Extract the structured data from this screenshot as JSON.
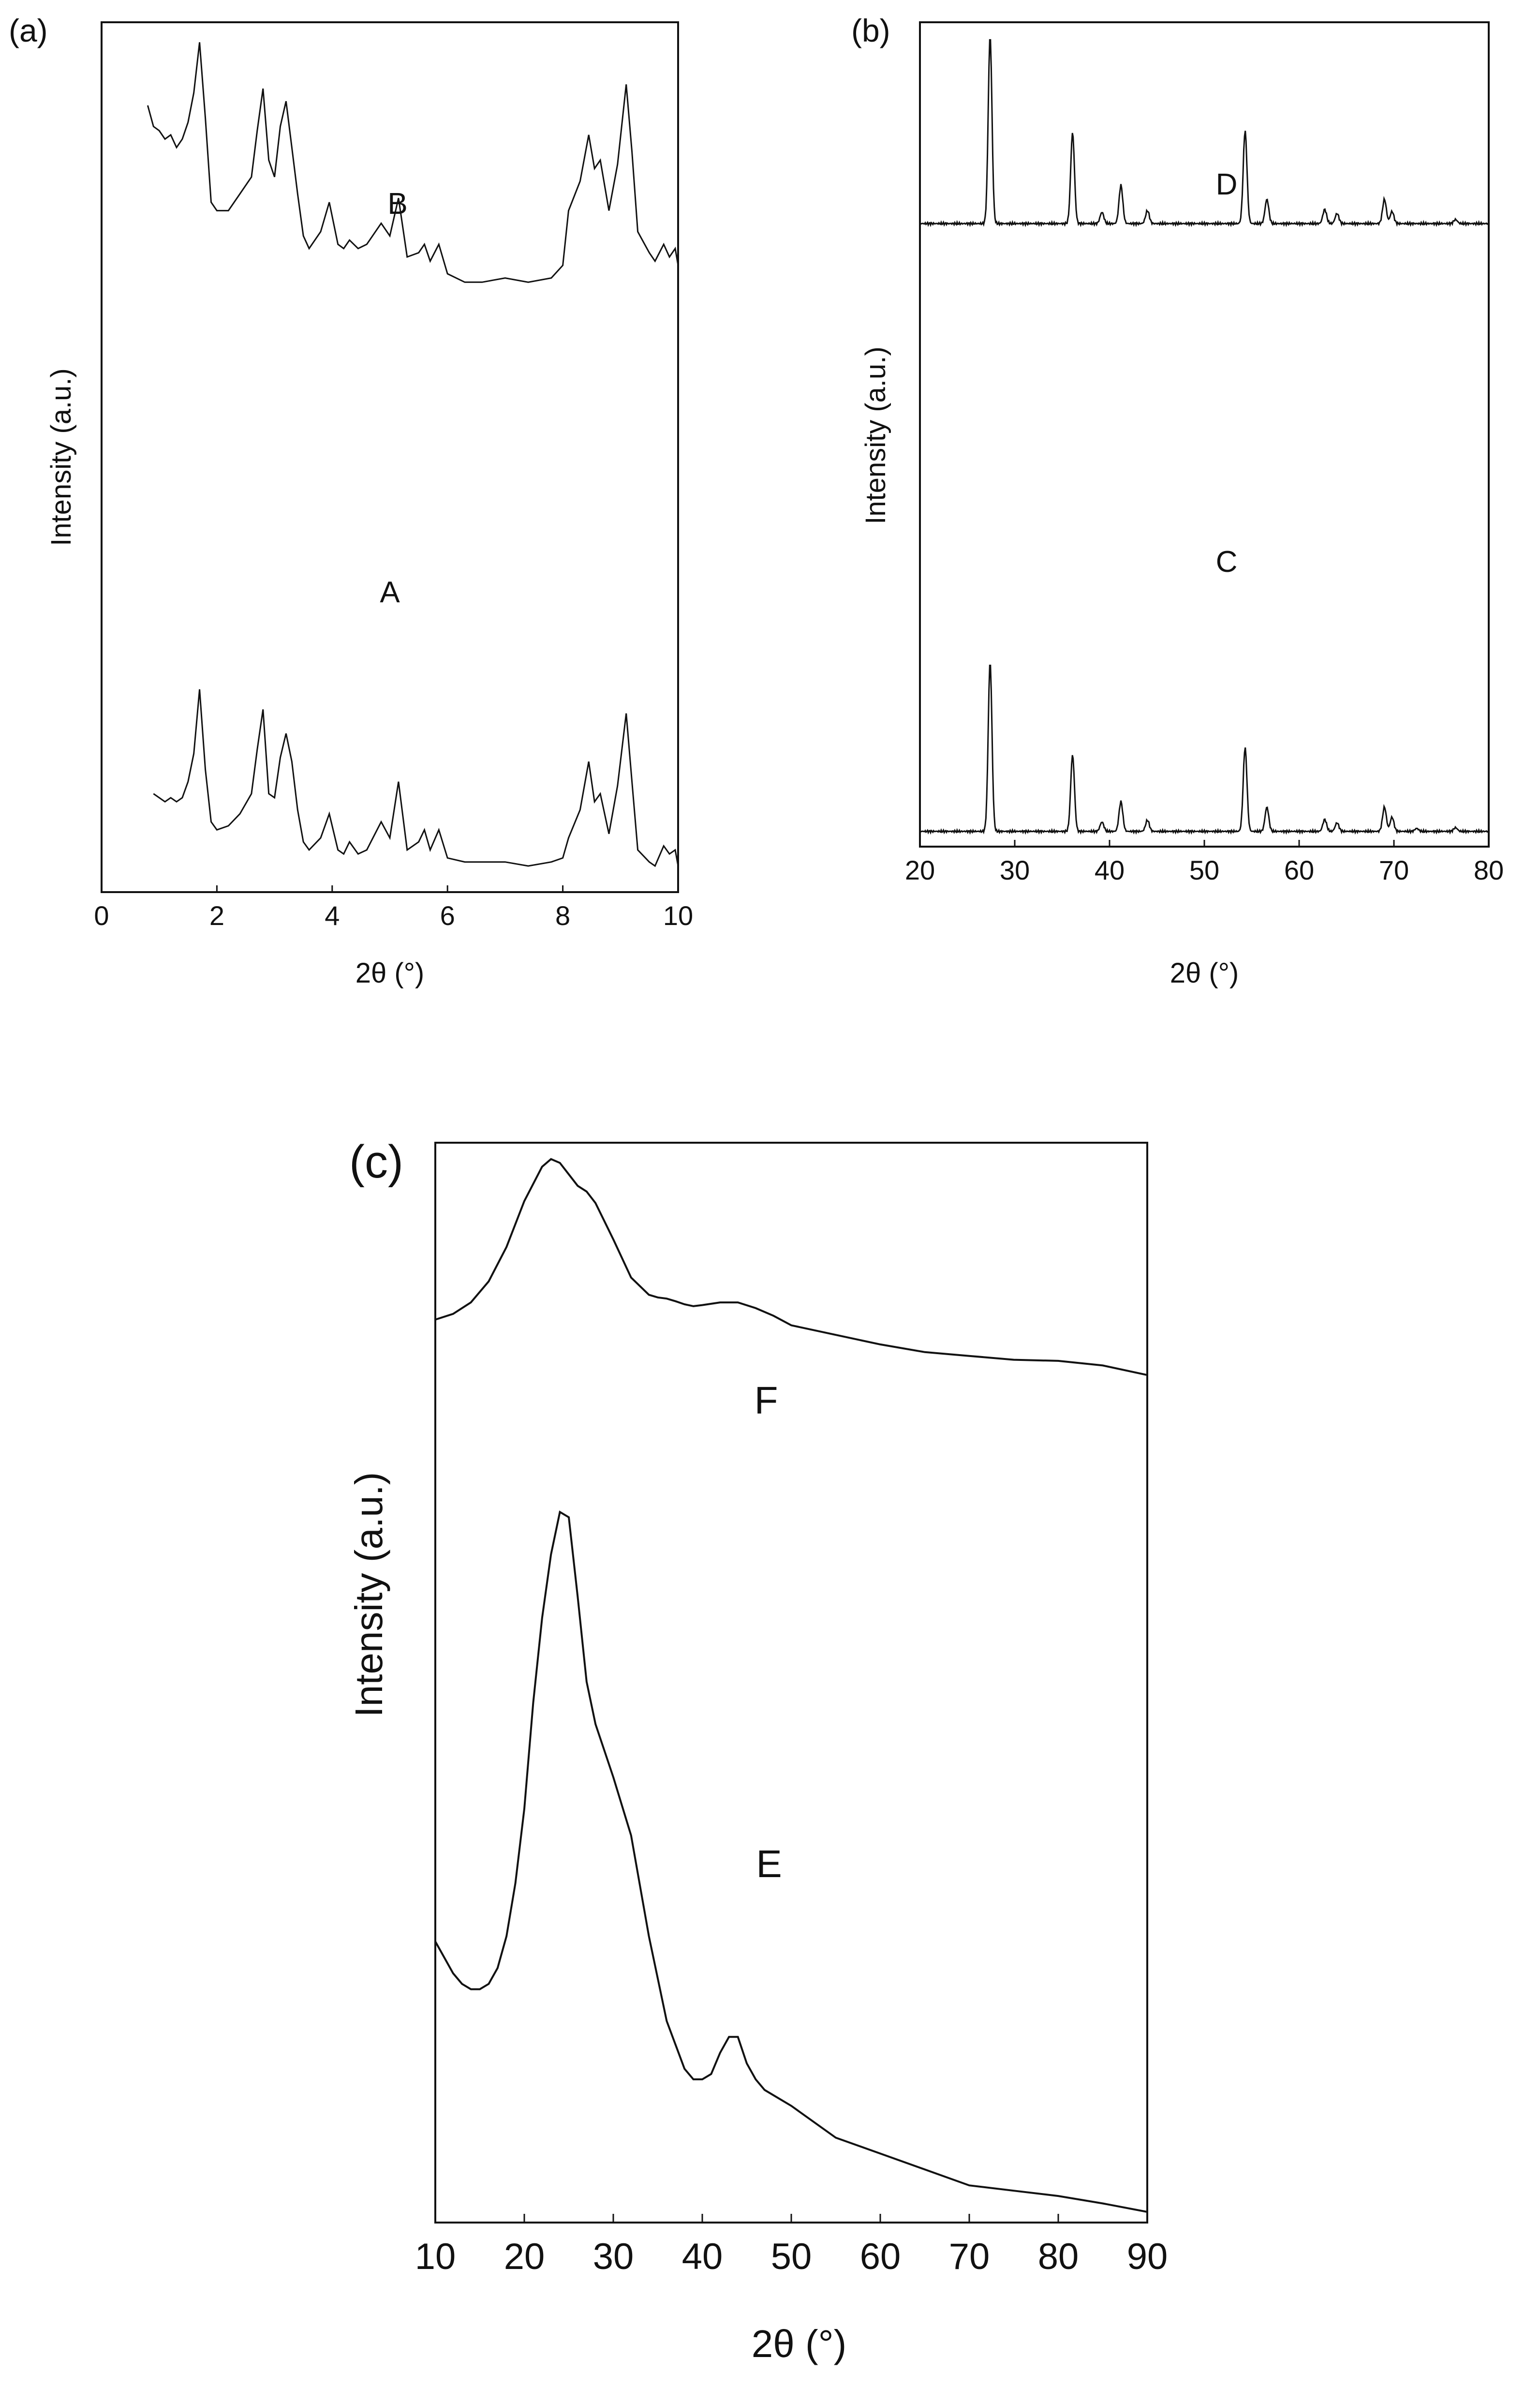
{
  "chart_data": [
    {
      "panel": "(a)",
      "type": "line",
      "title": "",
      "xlabel": "2θ (°)",
      "ylabel": "Intensity (a.u.)",
      "xlim": [
        0,
        10
      ],
      "xticks": [
        0,
        2,
        4,
        6,
        8,
        10
      ],
      "ylim": [
        0,
        100
      ],
      "grid": false,
      "series": [
        {
          "name": "B",
          "x": [
            0.8,
            0.9,
            1.0,
            1.1,
            1.2,
            1.3,
            1.4,
            1.5,
            1.6,
            1.7,
            1.8,
            1.9,
            2.0,
            2.2,
            2.4,
            2.6,
            2.7,
            2.8,
            2.9,
            3.0,
            3.1,
            3.2,
            3.3,
            3.4,
            3.5,
            3.6,
            3.8,
            3.95,
            4.1,
            4.2,
            4.3,
            4.45,
            4.6,
            4.85,
            5.0,
            5.15,
            5.3,
            5.5,
            5.6,
            5.7,
            5.85,
            6.0,
            6.3,
            6.6,
            7.0,
            7.4,
            7.8,
            8.0,
            8.1,
            8.3,
            8.45,
            8.55,
            8.65,
            8.8,
            8.95,
            9.1,
            9.2,
            9.3,
            9.5,
            9.6,
            9.75,
            9.85,
            9.95,
            10.0
          ],
          "values": [
            83,
            78,
            77,
            75,
            76,
            73,
            75,
            79,
            86,
            98,
            80,
            60,
            58,
            58,
            62,
            66,
            77,
            87,
            70,
            66,
            78,
            84,
            73,
            62,
            52,
            49,
            53,
            60,
            50,
            49,
            51,
            49,
            50,
            55,
            52,
            61,
            47,
            48,
            50,
            46,
            50,
            43,
            41,
            41,
            42,
            41,
            42,
            45,
            58,
            65,
            76,
            68,
            70,
            58,
            69,
            88,
            72,
            53,
            48,
            46,
            50,
            47,
            49,
            45
          ]
        },
        {
          "name": "A",
          "x": [
            0.9,
            1.0,
            1.1,
            1.2,
            1.3,
            1.4,
            1.5,
            1.6,
            1.7,
            1.8,
            1.9,
            2.0,
            2.2,
            2.4,
            2.6,
            2.7,
            2.8,
            2.9,
            3.0,
            3.1,
            3.2,
            3.3,
            3.4,
            3.5,
            3.6,
            3.8,
            3.95,
            4.1,
            4.2,
            4.3,
            4.45,
            4.6,
            4.85,
            5.0,
            5.15,
            5.3,
            5.5,
            5.6,
            5.7,
            5.85,
            6.0,
            6.3,
            6.6,
            7.0,
            7.4,
            7.8,
            8.0,
            8.1,
            8.3,
            8.45,
            8.55,
            8.65,
            8.8,
            8.95,
            9.1,
            9.2,
            9.3,
            9.5,
            9.6,
            9.75,
            9.85,
            9.95,
            10.0
          ],
          "values": [
            18,
            17,
            16,
            17,
            16,
            17,
            21,
            28,
            44,
            24,
            11,
            9,
            10,
            13,
            18,
            29,
            39,
            18,
            17,
            27,
            33,
            26,
            14,
            6,
            4,
            7,
            13,
            4,
            3,
            6,
            3,
            4,
            11,
            7,
            21,
            4,
            6,
            9,
            4,
            9,
            2,
            1,
            1,
            1,
            0,
            1,
            2,
            7,
            14,
            26,
            16,
            18,
            8,
            20,
            38,
            21,
            4,
            1,
            0,
            5,
            3,
            4,
            0
          ]
        }
      ],
      "annotations": [
        "B",
        "A"
      ]
    },
    {
      "panel": "(b)",
      "type": "line",
      "title": "",
      "xlabel": "2θ (°)",
      "ylabel": "Intensity (a.u.)",
      "xlim": [
        20,
        80
      ],
      "xticks": [
        20,
        30,
        40,
        50,
        60,
        70,
        80
      ],
      "ylim": [
        0,
        100
      ],
      "grid": false,
      "series": [
        {
          "name": "D",
          "peaks": [
            [
              27.4,
              46.5
            ],
            [
              36.1,
              22.5
            ],
            [
              39.2,
              2.8
            ],
            [
              41.2,
              9.5
            ],
            [
              44.0,
              3.2
            ],
            [
              54.3,
              23.0
            ],
            [
              56.6,
              6.0
            ],
            [
              62.7,
              3.5
            ],
            [
              64.0,
              2.5
            ],
            [
              69.0,
              6.0
            ],
            [
              69.8,
              3.0
            ],
            [
              76.5,
              1.0
            ]
          ],
          "baseline": 52.5,
          "values_note": "peak positions in 2θ, peak heights in relative intensity above baseline"
        },
        {
          "name": "C",
          "peaks": [
            [
              27.4,
              45.5
            ],
            [
              36.1,
              20.5
            ],
            [
              39.2,
              2.5
            ],
            [
              41.2,
              8.0
            ],
            [
              44.0,
              3.0
            ],
            [
              54.3,
              22.5
            ],
            [
              56.6,
              6.5
            ],
            [
              62.7,
              3.2
            ],
            [
              64.0,
              2.3
            ],
            [
              69.0,
              6.5
            ],
            [
              69.8,
              3.8
            ],
            [
              72.4,
              0.8
            ],
            [
              76.5,
              1.0
            ]
          ],
          "baseline": 1.5,
          "values_note": "peak positions in 2θ, peak heights in relative intensity above baseline"
        }
      ],
      "annotations": [
        "D",
        "C"
      ]
    },
    {
      "panel": "(c)",
      "type": "line",
      "title": "",
      "xlabel": "2θ (°)",
      "ylabel": "Intensity (a.u.)",
      "xlim": [
        10,
        90
      ],
      "xticks": [
        10,
        20,
        30,
        40,
        50,
        60,
        70,
        80,
        90
      ],
      "ylim": [
        0,
        100
      ],
      "grid": false,
      "series": [
        {
          "name": "F",
          "x": [
            10,
            12,
            14,
            16,
            18,
            20,
            22,
            23,
            24,
            25,
            26,
            27,
            28,
            30,
            32,
            34,
            35,
            36,
            37,
            38,
            39,
            40,
            42,
            44,
            46,
            48,
            50,
            55,
            60,
            65,
            70,
            75,
            80,
            85,
            90
          ],
          "values": [
            56,
            57.5,
            60.5,
            66,
            75,
            87,
            96,
            98,
            97,
            94,
            91,
            89.5,
            86.5,
            77,
            67,
            62.5,
            61.8,
            61.5,
            60.8,
            60,
            59.5,
            59.8,
            60.5,
            60.5,
            59,
            57,
            54.5,
            52,
            49.5,
            47.5,
            46.5,
            45.5,
            45.2,
            44,
            41.5
          ]
        },
        {
          "name": "E",
          "x": [
            10,
            12,
            13,
            14,
            15,
            16,
            17,
            18,
            19,
            20,
            21,
            22,
            23,
            24,
            25,
            26,
            27,
            28,
            30,
            32,
            34,
            36,
            38,
            39,
            40,
            41,
            42,
            43,
            44,
            45,
            46,
            47,
            48,
            50,
            55,
            60,
            65,
            70,
            75,
            80,
            85,
            90
          ],
          "values": [
            25.5,
            22.5,
            21.5,
            21,
            21,
            21.5,
            23,
            26,
            31,
            38,
            48,
            56,
            62,
            66,
            65.5,
            58,
            50,
            46,
            41,
            35.5,
            26,
            18,
            13.5,
            12.5,
            12.5,
            13,
            15,
            16.5,
            16.5,
            14,
            12.5,
            11.5,
            11,
            10,
            7,
            5.5,
            4,
            2.5,
            2,
            1.5,
            0.8,
            0
          ]
        }
      ],
      "annotations": [
        "F",
        "E"
      ]
    }
  ]
}
